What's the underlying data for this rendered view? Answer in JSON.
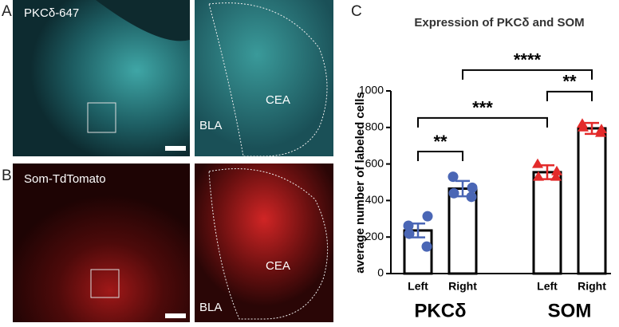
{
  "panels": [
    {
      "letter": "A",
      "label": "PKCδ-647",
      "regions": [
        "BLA",
        "CEA"
      ]
    },
    {
      "letter": "B",
      "label": "Som-TdTomato",
      "regions": [
        "BLA",
        "CEA"
      ]
    },
    {
      "letter": "C"
    }
  ],
  "chart_data": {
    "type": "bar",
    "title": "Expression of PKCδ and SOM",
    "y_label": "average number of labeled cells",
    "categories": [
      "Left",
      "Right",
      "Left",
      "Right"
    ],
    "groups": [
      "PKCδ",
      "SOM"
    ],
    "values": [
      236,
      465,
      555,
      795
    ],
    "errors": [
      38,
      42,
      38,
      30
    ],
    "points": [
      [
        262,
        314,
        218,
        148
      ],
      [
        530,
        470,
        440,
        420
      ],
      [
        600,
        560,
        530,
        530
      ],
      [
        820,
        790,
        800,
        770
      ]
    ],
    "point_colors": [
      "#4a66b5",
      "#4a66b5",
      "#e32b2b",
      "#e32b2b"
    ],
    "point_markers": [
      "circle",
      "circle",
      "triangle",
      "triangle"
    ],
    "bar_color": "#ffffff",
    "ylim": [
      0,
      1000
    ],
    "yticks": [
      0,
      200,
      400,
      600,
      800,
      1000
    ],
    "annotations": [
      {
        "from": 0,
        "to": 1,
        "text": "**",
        "y": 668
      },
      {
        "from": 0,
        "to": 2,
        "text": "***",
        "y": 852
      },
      {
        "from": 1,
        "to": 3,
        "text": "****",
        "y": 1114
      },
      {
        "from": 2,
        "to": 3,
        "text": "**",
        "y": 996
      }
    ]
  }
}
